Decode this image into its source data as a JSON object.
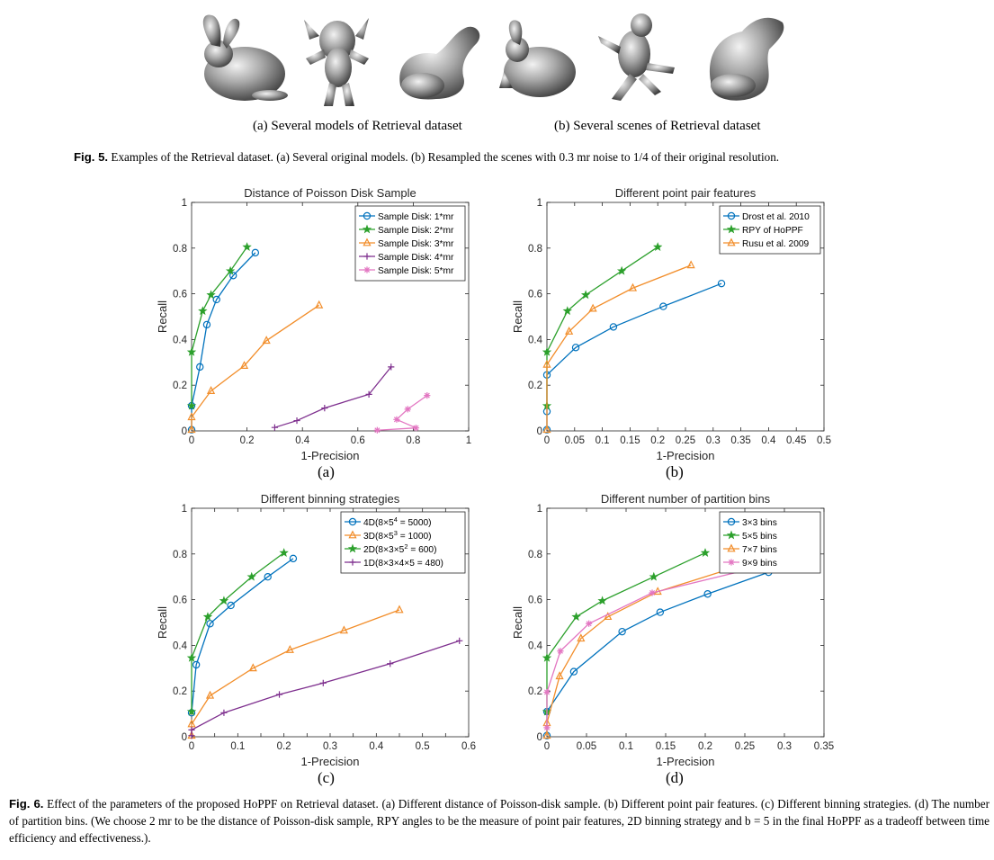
{
  "figure5": {
    "label_a": "(a) Several models of Retrieval dataset",
    "label_b": "(b)  Several scenes of Retrieval dataset",
    "caption_bold": "Fig. 5.",
    "caption_text": " Examples of the Retrieval dataset. (a) Several original models. (b) Resampled the scenes with 0.3 mr noise to 1/4 of their original resolution.",
    "image_semantics": [
      "bunny-model",
      "armadillo-model",
      "dragon-model",
      "bunny-scene",
      "armadillo-scene",
      "dragon-scene"
    ]
  },
  "figure6": {
    "caption_bold": "Fig. 6.",
    "caption_text": " Effect of the parameters of the proposed HoPPF on Retrieval dataset. (a) Different distance of Poisson-disk sample. (b) Different point pair features. (c) Different binning strategies. (d) The number of partition bins. (We choose 2 mr to be the distance of Poisson-disk sample, RPY angles to be the measure of point pair features, 2D binning strategy and b = 5 in the final HoPPF as a tradeoff between time efficiency and effectiveness.).",
    "panel_labels": [
      "(a)",
      "(b)",
      "(c)",
      "(d)"
    ]
  },
  "colors": {
    "blue": "#0072BD",
    "green": "#2CA02C",
    "orange": "#F28E2B",
    "purple": "#7E2F8E",
    "pink": "#E377C2"
  },
  "chart_data": [
    {
      "type": "line",
      "title": "Distance of Poisson Disk Sample",
      "xlabel": "1-Precision",
      "ylabel": "Recall",
      "xlim": [
        0,
        1
      ],
      "ylim": [
        0,
        1
      ],
      "xticks": [
        0,
        0.2,
        0.4,
        0.6,
        0.8,
        1
      ],
      "xticklabels": [
        "0",
        "0.2",
        "0.4",
        "0.6",
        "0.8",
        "1"
      ],
      "yticks": [
        0,
        0.2,
        0.4,
        0.6,
        0.8,
        1
      ],
      "yticklabels": [
        "0",
        "0.2",
        "0.4",
        "0.6",
        "0.8",
        "1"
      ],
      "legend_position": "top-right",
      "series": [
        {
          "name": "Sample Disk: 1*mr",
          "color": "#0072BD",
          "marker": "circle",
          "x": [
            0,
            0,
            0.03,
            0.055,
            0.09,
            0.15,
            0.23
          ],
          "y": [
            0.005,
            0.11,
            0.28,
            0.465,
            0.575,
            0.68,
            0.78
          ]
        },
        {
          "name": "Sample Disk: 2*mr",
          "color": "#2CA02C",
          "marker": "star",
          "x": [
            0,
            0,
            0.04,
            0.07,
            0.14,
            0.2
          ],
          "y": [
            0.11,
            0.345,
            0.525,
            0.595,
            0.7,
            0.805
          ]
        },
        {
          "name": "Sample Disk: 3*mr",
          "color": "#F28E2B",
          "marker": "triangle",
          "x": [
            0,
            0,
            0.07,
            0.19,
            0.27,
            0.46
          ],
          "y": [
            0.005,
            0.06,
            0.175,
            0.285,
            0.395,
            0.55
          ]
        },
        {
          "name": "Sample Disk: 4*mr",
          "color": "#7E2F8E",
          "marker": "plus",
          "x": [
            0.3,
            0.38,
            0.48,
            0.64,
            0.72
          ],
          "y": [
            0.015,
            0.045,
            0.1,
            0.16,
            0.28
          ]
        },
        {
          "name": "Sample Disk: 5*mr",
          "color": "#E377C2",
          "marker": "asterisk",
          "x": [
            0.67,
            0.81,
            0.74,
            0.78,
            0.85
          ],
          "y": [
            0.003,
            0.013,
            0.05,
            0.095,
            0.155
          ]
        }
      ]
    },
    {
      "type": "line",
      "title": "Different point pair features",
      "xlabel": "1-Precision",
      "ylabel": "Recall",
      "xlim": [
        0,
        0.5
      ],
      "ylim": [
        0,
        1
      ],
      "xticks": [
        0,
        0.05,
        0.1,
        0.15,
        0.2,
        0.25,
        0.3,
        0.35,
        0.4,
        0.45,
        0.5
      ],
      "xticklabels": [
        "0",
        "0.05",
        "0.1",
        "0.15",
        "0.2",
        "0.25",
        "0.3",
        "0.35",
        "0.4",
        "0.45",
        "0.5"
      ],
      "yticks": [
        0,
        0.2,
        0.4,
        0.6,
        0.8,
        1
      ],
      "yticklabels": [
        "0",
        "0.2",
        "0.4",
        "0.6",
        "0.8",
        "1"
      ],
      "legend_position": "top-right",
      "series": [
        {
          "name": "Drost et al. 2010",
          "color": "#0072BD",
          "marker": "circle",
          "x": [
            0,
            0,
            0,
            0.052,
            0.12,
            0.21,
            0.315
          ],
          "y": [
            0.005,
            0.085,
            0.245,
            0.365,
            0.455,
            0.545,
            0.645
          ]
        },
        {
          "name": "RPY of HoPPF",
          "color": "#2CA02C",
          "marker": "star",
          "x": [
            0,
            0,
            0.037,
            0.07,
            0.135,
            0.2
          ],
          "y": [
            0.11,
            0.345,
            0.525,
            0.595,
            0.7,
            0.805
          ]
        },
        {
          "name": "Rusu et al. 2009",
          "color": "#F28E2B",
          "marker": "triangle",
          "x": [
            0,
            0,
            0.04,
            0.083,
            0.155,
            0.26
          ],
          "y": [
            0.005,
            0.29,
            0.435,
            0.535,
            0.625,
            0.725
          ]
        }
      ]
    },
    {
      "type": "line",
      "title": "Different binning strategies",
      "xlabel": "1-Precision",
      "ylabel": "Recall",
      "xlim": [
        0,
        0.6
      ],
      "ylim": [
        0,
        1
      ],
      "xticks": [
        0,
        0.05,
        0.1,
        0.15,
        0.2,
        0.25,
        0.3,
        0.35,
        0.4,
        0.45,
        0.5,
        0.55,
        0.6
      ],
      "xticklabels": [
        "0",
        "",
        "0.1",
        "",
        "0.2",
        "",
        "0.3",
        "",
        "0.4",
        "",
        "0.5",
        "",
        "0.6"
      ],
      "yticks": [
        0,
        0.2,
        0.4,
        0.6,
        0.8,
        1
      ],
      "yticklabels": [
        "0",
        "0.2",
        "0.4",
        "0.6",
        "0.8",
        "1"
      ],
      "legend_position": "top-right",
      "series": [
        {
          "name_base": "4D(8×5",
          "name_sup": "4",
          "name_tail": " = 5000)",
          "color": "#0072BD",
          "marker": "circle",
          "x": [
            0,
            0.01,
            0.04,
            0.085,
            0.165,
            0.22
          ],
          "y": [
            0.105,
            0.315,
            0.495,
            0.575,
            0.7,
            0.78
          ]
        },
        {
          "name_base": "3D(8×5",
          "name_sup": "3",
          "name_tail": " = 1000)",
          "color": "#F28E2B",
          "marker": "triangle",
          "x": [
            0,
            0,
            0.04,
            0.133,
            0.213,
            0.33,
            0.45
          ],
          "y": [
            0.005,
            0.055,
            0.18,
            0.3,
            0.38,
            0.465,
            0.555
          ]
        },
        {
          "name_base": "2D(8×3×5",
          "name_sup": "2",
          "name_tail": " = 600)",
          "color": "#2CA02C",
          "marker": "star",
          "x": [
            0,
            0,
            0.035,
            0.07,
            0.13,
            0.2
          ],
          "y": [
            0.11,
            0.345,
            0.525,
            0.595,
            0.7,
            0.805
          ]
        },
        {
          "name_base": "1D(8×3×4×5 = 480)",
          "name_sup": "",
          "name_tail": "",
          "color": "#7E2F8E",
          "marker": "plus",
          "x": [
            0,
            0,
            0.07,
            0.19,
            0.285,
            0.43,
            0.58
          ],
          "y": [
            0.005,
            0.03,
            0.105,
            0.185,
            0.235,
            0.32,
            0.42
          ]
        }
      ]
    },
    {
      "type": "line",
      "title": "Different number of partition bins",
      "xlabel": "1-Precision",
      "ylabel": "Recall",
      "xlim": [
        0,
        0.35
      ],
      "ylim": [
        0,
        1
      ],
      "xticks": [
        0,
        0.05,
        0.1,
        0.15,
        0.2,
        0.25,
        0.3,
        0.35
      ],
      "xticklabels": [
        "0",
        "0.05",
        "0.1",
        "0.15",
        "0.2",
        "0.25",
        "0.3",
        "0.35"
      ],
      "yticks": [
        0,
        0.2,
        0.4,
        0.6,
        0.8,
        1
      ],
      "yticklabels": [
        "0",
        "0.2",
        "0.4",
        "0.6",
        "0.8",
        "1"
      ],
      "legend_position": "top-right",
      "series": [
        {
          "name": "3×3 bins",
          "color": "#0072BD",
          "marker": "circle",
          "x": [
            0,
            0,
            0.034,
            0.095,
            0.143,
            0.203,
            0.28
          ],
          "y": [
            0.005,
            0.11,
            0.285,
            0.46,
            0.545,
            0.625,
            0.72
          ]
        },
        {
          "name": "5×5 bins",
          "color": "#2CA02C",
          "marker": "star",
          "x": [
            0,
            0,
            0.037,
            0.07,
            0.135,
            0.2
          ],
          "y": [
            0.11,
            0.345,
            0.525,
            0.595,
            0.7,
            0.805
          ]
        },
        {
          "name": "7×7 bins",
          "color": "#F28E2B",
          "marker": "triangle",
          "x": [
            0,
            0,
            0.016,
            0.043,
            0.077,
            0.14,
            0.25
          ],
          "y": [
            0.005,
            0.06,
            0.265,
            0.43,
            0.525,
            0.635,
            0.755
          ]
        },
        {
          "name": "9×9 bins",
          "color": "#E377C2",
          "marker": "asterisk",
          "x": [
            0,
            0,
            0.017,
            0.053,
            0.133,
            0.27
          ],
          "y": [
            0.04,
            0.195,
            0.375,
            0.495,
            0.63,
            0.745
          ]
        }
      ]
    }
  ]
}
